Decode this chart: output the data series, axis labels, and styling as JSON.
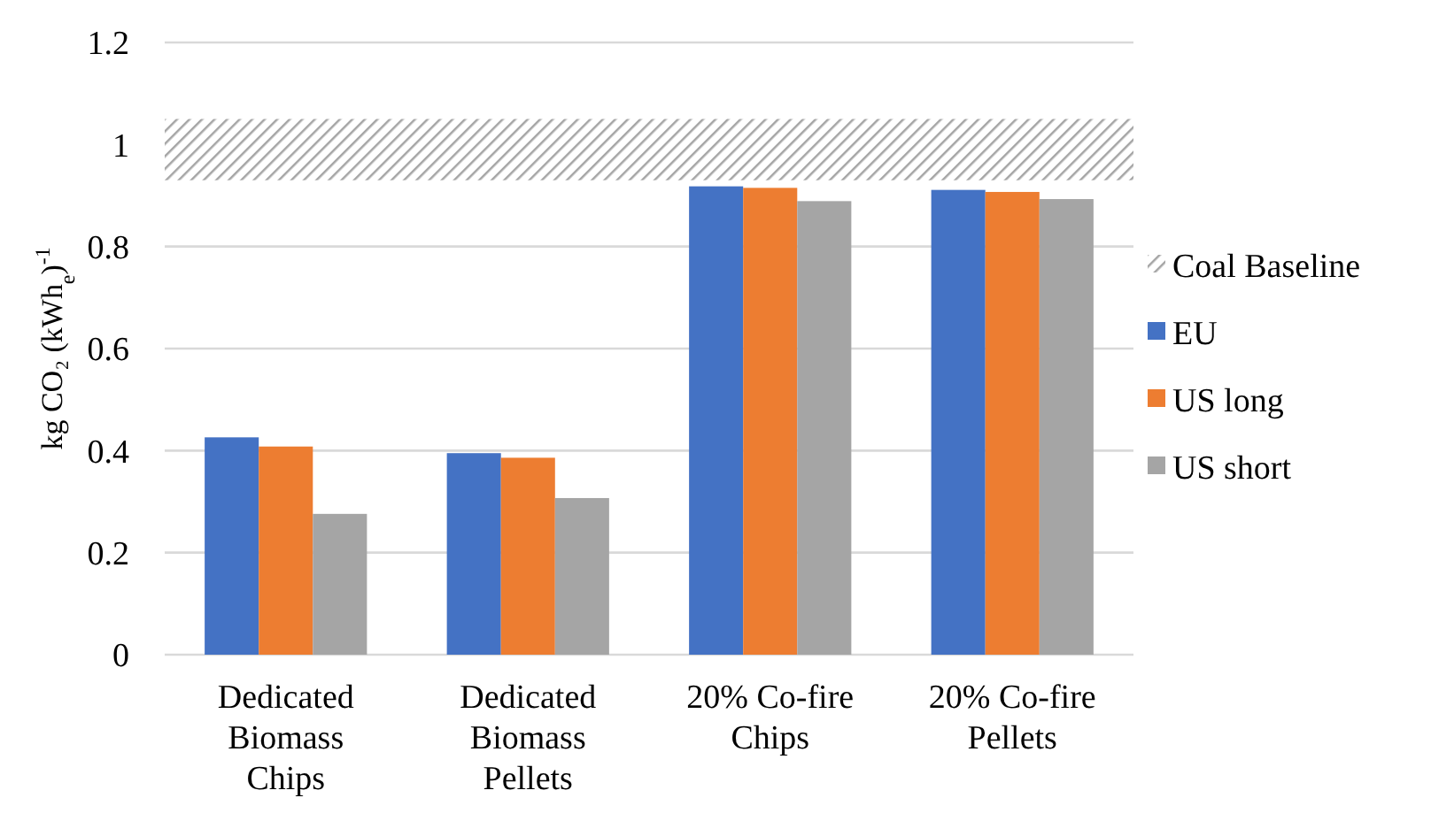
{
  "chart_data": {
    "type": "bar",
    "ylabel": "kg CO₂ (kWh$_{e}$)$^{-1}$",
    "categories": [
      "Dedicated Biomass Chips",
      "Dedicated Biomass Pellets",
      "20% Co-fire Chips",
      "20% Co-fire Pellets"
    ],
    "series": [
      {
        "name": "EU",
        "color": "#4472c4",
        "values": [
          0.426,
          0.395,
          0.918,
          0.911
        ]
      },
      {
        "name": "US long",
        "color": "#ed7d31",
        "values": [
          0.408,
          0.386,
          0.915,
          0.907
        ]
      },
      {
        "name": "US short",
        "color": "#a5a5a5",
        "values": [
          0.276,
          0.307,
          0.889,
          0.893
        ]
      }
    ],
    "bands": [
      {
        "axis": "y",
        "from": 0.93,
        "to": 1.05,
        "label": "Coal Baseline",
        "color": "#a5a5a5"
      }
    ],
    "ylim": [
      0,
      1.2
    ],
    "yticks": [
      0,
      0.2,
      0.4,
      0.6,
      0.8,
      1,
      1.2
    ],
    "grid": "y",
    "legend": "right"
  }
}
